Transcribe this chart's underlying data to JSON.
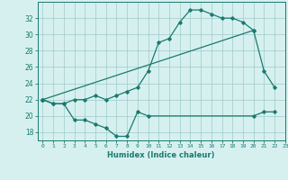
{
  "line1_x": [
    0,
    1,
    2,
    3,
    4,
    5,
    6,
    7,
    8,
    9,
    10,
    11,
    12,
    13,
    14,
    15,
    16,
    17,
    18,
    19,
    20,
    21,
    22
  ],
  "line1_y": [
    22,
    21.5,
    21.5,
    22,
    22,
    22.5,
    22,
    22.5,
    23,
    23.5,
    25.5,
    29,
    29.5,
    31.5,
    33,
    33,
    32.5,
    32,
    32,
    31.5,
    30.5,
    25.5,
    23.5
  ],
  "line2_x": [
    0,
    20
  ],
  "line2_y": [
    22,
    30.5
  ],
  "line3_x": [
    0,
    1,
    2,
    3,
    4,
    5,
    6,
    7,
    8,
    9,
    10,
    20,
    21,
    22
  ],
  "line3_y": [
    22,
    21.5,
    21.5,
    19.5,
    19.5,
    19,
    18.5,
    17.5,
    17.5,
    20.5,
    20,
    20,
    20.5,
    20.5
  ],
  "color": "#1a7a6e",
  "bg_color": "#d6f0f0",
  "grid_color": "#a0c8c8",
  "xlabel": "Humidex (Indice chaleur)",
  "ylim": [
    17,
    34
  ],
  "xlim": [
    -0.5,
    23
  ],
  "yticks": [
    18,
    20,
    22,
    24,
    26,
    28,
    30,
    32
  ],
  "xtick_labels": [
    "0",
    "1",
    "2",
    "3",
    "4",
    "5",
    "6",
    "7",
    "8",
    "9",
    "10",
    "11",
    "12",
    "13",
    "14",
    "15",
    "16",
    "17",
    "18",
    "19",
    "20",
    "21",
    "22",
    "23"
  ],
  "marker": "D",
  "markersize": 1.8,
  "linewidth": 0.9
}
